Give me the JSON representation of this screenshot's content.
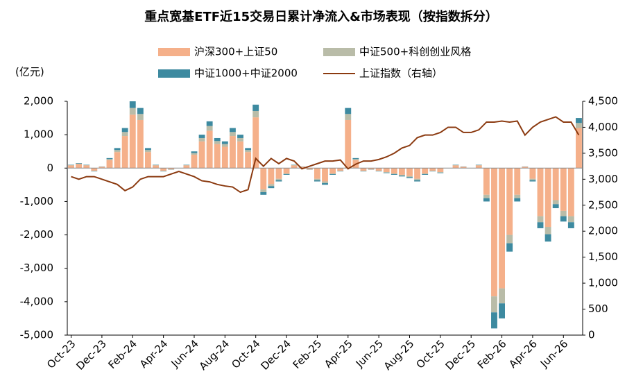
{
  "chart_data": {
    "type": "bar",
    "title": "重点宽基ETF近15交易日累计净流入&市场表现（按指数拆分）",
    "y_label": "(亿元)",
    "categories": [
      "Oct-23",
      null,
      null,
      null,
      "Dec-23",
      null,
      null,
      null,
      "Feb-24",
      null,
      null,
      null,
      "Apr-24",
      null,
      null,
      null,
      "Jun-24",
      null,
      null,
      null,
      "Aug-24",
      null,
      null,
      null,
      "Oct-24",
      null,
      null,
      null,
      "Dec-24",
      null,
      null,
      null,
      "Feb-25",
      null,
      null,
      null,
      "Apr-25",
      null,
      null,
      null,
      "Jun-25",
      null,
      null,
      null,
      "Aug-25",
      null,
      null,
      null,
      "Oct-25",
      null,
      null,
      null,
      "Dec-25",
      null,
      null,
      null,
      "Feb-26",
      null,
      null,
      null,
      "Apr-26",
      null,
      null,
      null,
      "Jun-26",
      null,
      null
    ],
    "series": [
      {
        "name": "沪深300+上证50",
        "color": "#f5b08a",
        "values": [
          80,
          120,
          80,
          -80,
          40,
          240,
          480,
          960,
          1600,
          1440,
          480,
          80,
          -80,
          -40,
          0,
          80,
          400,
          800,
          1120,
          720,
          640,
          960,
          800,
          480,
          1520,
          -640,
          -480,
          -320,
          -160,
          80,
          40,
          -40,
          -320,
          -400,
          -160,
          -80,
          1440,
          240,
          -80,
          -40,
          -80,
          -120,
          -160,
          -200,
          -240,
          -320,
          -160,
          -80,
          -120,
          0,
          80,
          40,
          0,
          80,
          -800,
          -3840,
          -3600,
          -2000,
          -800,
          40,
          -320,
          -1440,
          -1760,
          -960,
          -1280,
          -1440,
          1200
        ]
      },
      {
        "name": "中证500+科创创业风格",
        "color": "#b9bca8",
        "values": [
          10,
          15,
          10,
          -10,
          5,
          30,
          60,
          120,
          200,
          180,
          60,
          10,
          -10,
          -5,
          0,
          10,
          50,
          100,
          140,
          90,
          80,
          120,
          100,
          60,
          190,
          -80,
          -60,
          -40,
          -20,
          10,
          5,
          -5,
          -40,
          -50,
          -20,
          -10,
          180,
          30,
          -10,
          -5,
          -10,
          -15,
          -20,
          -25,
          -30,
          -40,
          -20,
          -10,
          -15,
          0,
          10,
          5,
          0,
          10,
          -100,
          -480,
          -450,
          -250,
          -100,
          5,
          -40,
          -180,
          -220,
          -120,
          -160,
          -180,
          150
        ]
      },
      {
        "name": "中证1000+中证2000",
        "color": "#3d8aa0",
        "values": [
          10,
          15,
          10,
          -10,
          5,
          30,
          60,
          120,
          200,
          180,
          60,
          10,
          -10,
          -5,
          0,
          10,
          50,
          100,
          140,
          90,
          80,
          120,
          100,
          60,
          190,
          -80,
          -60,
          -40,
          -20,
          10,
          5,
          -5,
          -40,
          -50,
          -20,
          -10,
          180,
          30,
          -10,
          -5,
          -10,
          -15,
          -20,
          -25,
          -30,
          -40,
          -20,
          -10,
          -15,
          0,
          10,
          5,
          0,
          10,
          -100,
          -480,
          -450,
          -250,
          -100,
          5,
          -40,
          -180,
          -220,
          -120,
          -160,
          -180,
          150
        ]
      },
      {
        "name": "上证指数（右轴）",
        "color": "#8b3a10",
        "type": "line",
        "axis": "y2",
        "values": [
          3050,
          3000,
          3050,
          3050,
          3000,
          2950,
          2900,
          2780,
          2850,
          3000,
          3050,
          3050,
          3050,
          3100,
          3150,
          3100,
          3050,
          2970,
          2950,
          2900,
          2870,
          2850,
          2750,
          2800,
          3400,
          3250,
          3400,
          3300,
          3400,
          3350,
          3200,
          3250,
          3300,
          3350,
          3350,
          3370,
          3200,
          3290,
          3350,
          3350,
          3380,
          3430,
          3500,
          3600,
          3650,
          3800,
          3850,
          3850,
          3900,
          4000,
          4000,
          3900,
          3900,
          3950,
          4100,
          4100,
          4120,
          4100,
          4120,
          3850,
          4000,
          4100,
          4150,
          4200,
          4100,
          4100,
          3850
        ]
      }
    ],
    "ylim": [
      -5000,
      2000
    ],
    "yticks": [
      {
        "value": 2000,
        "label": "2,000"
      },
      {
        "value": 1000,
        "label": "1,000"
      },
      0,
      {
        "value": -1000,
        "label": "-1,000"
      },
      {
        "value": -2000,
        "label": "-2,000"
      },
      {
        "value": -3000,
        "label": "-3,000"
      },
      {
        "value": -4000,
        "label": "-4,000"
      },
      {
        "value": -5000,
        "label": "-5,000"
      }
    ],
    "y2lim": [
      0,
      4500
    ],
    "y2ticks": [
      {
        "value": 4500,
        "label": "4,500"
      },
      {
        "value": 4000,
        "label": "4,000"
      },
      {
        "value": 3500,
        "label": "3,500"
      },
      {
        "value": 3000,
        "label": "3,000"
      },
      {
        "value": 2500,
        "label": "2,500"
      },
      {
        "value": 2000,
        "label": "2,000"
      },
      {
        "value": 1500,
        "label": "1,500"
      },
      {
        "value": 1000,
        "label": "1,000"
      },
      500,
      0
    ]
  }
}
